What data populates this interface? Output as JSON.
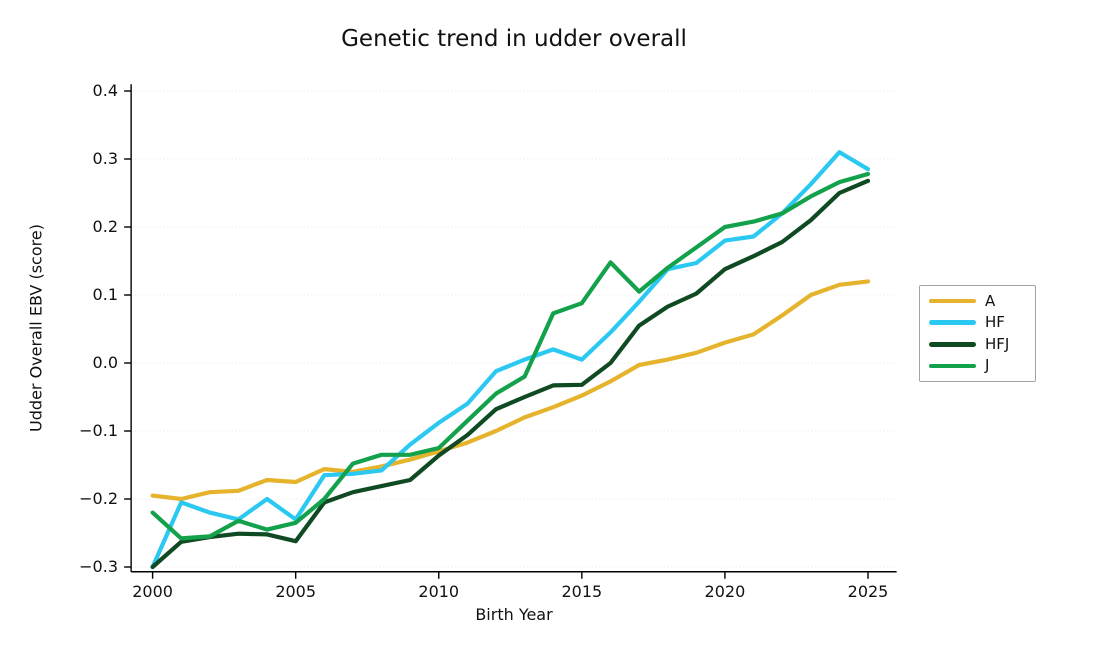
{
  "chart_data": {
    "type": "line",
    "title": "Genetic trend in udder overall",
    "xlabel": "Birth Year",
    "ylabel": "Udder Overall EBV (score)",
    "x": [
      2000,
      2001,
      2002,
      2003,
      2004,
      2005,
      2006,
      2007,
      2008,
      2009,
      2010,
      2011,
      2012,
      2013,
      2014,
      2015,
      2016,
      2017,
      2018,
      2019,
      2020,
      2021,
      2022,
      2023,
      2024,
      2025
    ],
    "xticks": [
      2000,
      2005,
      2010,
      2015,
      2020,
      2025
    ],
    "yticks": [
      0.4,
      0.3,
      0.2,
      0.1,
      0.0,
      -0.1,
      -0.2,
      -0.3
    ],
    "xlim": [
      1999.25,
      2026.0
    ],
    "ylim": [
      -0.307,
      0.41
    ],
    "grid": "faint dotted horizontal lines at each y tick",
    "legend_position": "outside right, vertically centered",
    "series": [
      {
        "name": "A",
        "color": "#E6B32D",
        "values": [
          -0.195,
          -0.2,
          -0.19,
          -0.188,
          -0.172,
          -0.175,
          -0.156,
          -0.16,
          -0.152,
          -0.142,
          -0.13,
          -0.117,
          -0.1,
          -0.08,
          -0.065,
          -0.048,
          -0.027,
          -0.003,
          0.005,
          0.015,
          0.03,
          0.042,
          0.07,
          0.1,
          0.115,
          0.12
        ]
      },
      {
        "name": "HF",
        "color": "#2BC9F2",
        "values": [
          -0.3,
          -0.205,
          -0.22,
          -0.23,
          -0.2,
          -0.23,
          -0.165,
          -0.163,
          -0.158,
          -0.12,
          -0.088,
          -0.06,
          -0.012,
          0.005,
          0.02,
          0.005,
          0.045,
          0.09,
          0.138,
          0.147,
          0.18,
          0.186,
          0.22,
          0.263,
          0.31,
          0.285
        ]
      },
      {
        "name": "HFJ",
        "color": "#0F4A23",
        "values": [
          -0.3,
          -0.263,
          -0.256,
          -0.251,
          -0.252,
          -0.262,
          -0.205,
          -0.19,
          -0.181,
          -0.172,
          -0.136,
          -0.106,
          -0.068,
          -0.05,
          -0.033,
          -0.032,
          0.0,
          0.055,
          0.083,
          0.102,
          0.138,
          0.157,
          0.178,
          0.21,
          0.25,
          0.268
        ]
      },
      {
        "name": "J",
        "color": "#14A14B",
        "values": [
          -0.22,
          -0.258,
          -0.255,
          -0.232,
          -0.245,
          -0.235,
          -0.2,
          -0.148,
          -0.135,
          -0.135,
          -0.125,
          -0.085,
          -0.045,
          -0.02,
          0.073,
          0.088,
          0.148,
          0.105,
          0.14,
          0.17,
          0.2,
          0.208,
          0.22,
          0.245,
          0.266,
          0.278
        ]
      }
    ],
    "axis_color": "#000000",
    "background": "#ffffff"
  }
}
